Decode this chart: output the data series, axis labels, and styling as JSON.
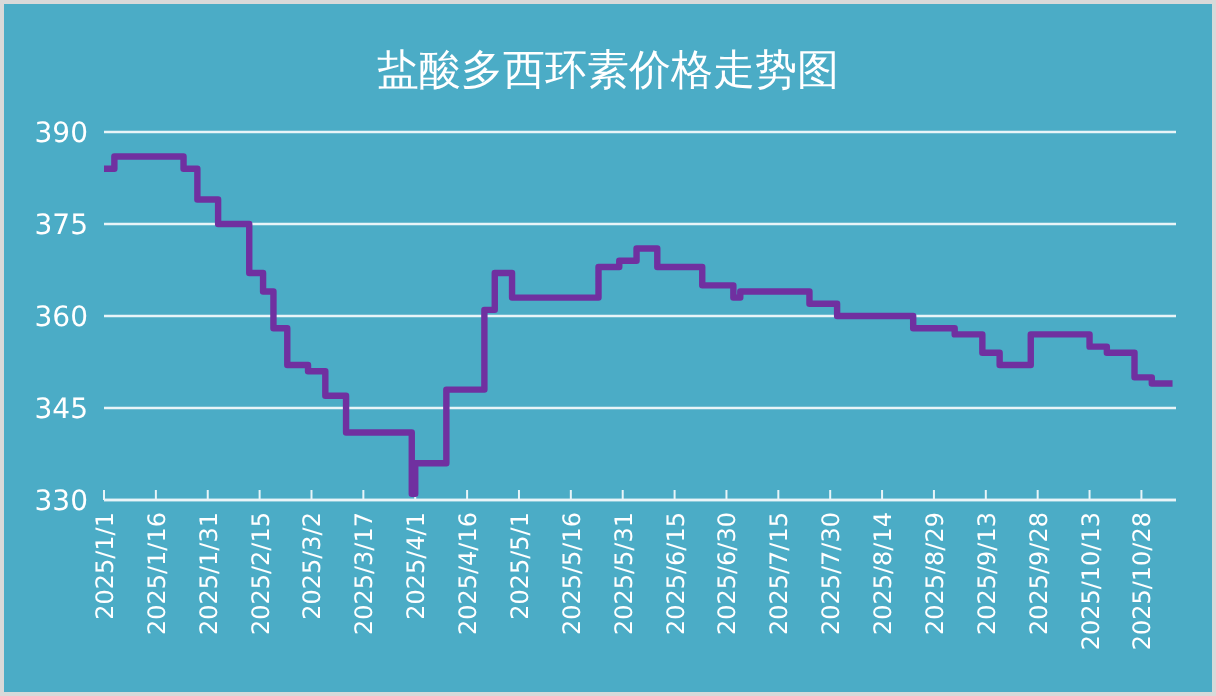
{
  "chart_data": {
    "type": "step",
    "title": "盐酸多西环素价格走势图",
    "color": "#7030a0",
    "grid": "y",
    "marker": "none",
    "line_style": "solid",
    "x": [
      "2025-01-01",
      "2025-01-04",
      "2025-01-24",
      "2025-01-28",
      "2025-02-03",
      "2025-02-12",
      "2025-02-16",
      "2025-02-19",
      "2025-02-23",
      "2025-03-01",
      "2025-03-06",
      "2025-03-12",
      "2025-03-31",
      "2025-04-01",
      "2025-04-10",
      "2025-04-21",
      "2025-04-24",
      "2025-04-29",
      "2025-05-24",
      "2025-05-30",
      "2025-06-04",
      "2025-06-10",
      "2025-06-23",
      "2025-07-02",
      "2025-07-04",
      "2025-07-24",
      "2025-08-01",
      "2025-08-23",
      "2025-09-04",
      "2025-09-12",
      "2025-09-17",
      "2025-09-26",
      "2025-10-13",
      "2025-10-18",
      "2025-10-26",
      "2025-10-31",
      "2025-11-06"
    ],
    "values": [
      384,
      386,
      384,
      379,
      375,
      367,
      364,
      358,
      352,
      351,
      347,
      341,
      331,
      336,
      348,
      361,
      367,
      363,
      368,
      369,
      371,
      368,
      365,
      363,
      364,
      362,
      360,
      358,
      357,
      354,
      352,
      357,
      355,
      354,
      350,
      349,
      349
    ],
    "xlim": [
      "2025-01-01",
      "2025-11-07"
    ],
    "xticks": [
      {
        "value": "2025-01-01",
        "label": "2025/1/1"
      },
      {
        "value": "2025-01-16",
        "label": "2025/1/16"
      },
      {
        "value": "2025-01-31",
        "label": "2025/1/31"
      },
      {
        "value": "2025-02-15",
        "label": "2025/2/15"
      },
      {
        "value": "2025-03-02",
        "label": "2025/3/2"
      },
      {
        "value": "2025-03-17",
        "label": "2025/3/17"
      },
      {
        "value": "2025-04-01",
        "label": "2025/4/1"
      },
      {
        "value": "2025-04-16",
        "label": "2025/4/16"
      },
      {
        "value": "2025-05-01",
        "label": "2025/5/1"
      },
      {
        "value": "2025-05-16",
        "label": "2025/5/16"
      },
      {
        "value": "2025-05-31",
        "label": "2025/5/31"
      },
      {
        "value": "2025-06-15",
        "label": "2025/6/15"
      },
      {
        "value": "2025-06-30",
        "label": "2025/6/30"
      },
      {
        "value": "2025-07-15",
        "label": "2025/7/15"
      },
      {
        "value": "2025-07-30",
        "label": "2025/7/30"
      },
      {
        "value": "2025-08-14",
        "label": "2025/8/14"
      },
      {
        "value": "2025-08-29",
        "label": "2025/8/29"
      },
      {
        "value": "2025-09-13",
        "label": "2025/9/13"
      },
      {
        "value": "2025-09-28",
        "label": "2025/9/28"
      },
      {
        "value": "2025-10-13",
        "label": "2025/10/13"
      },
      {
        "value": "2025-10-28",
        "label": "2025/10/28"
      }
    ],
    "ylim": [
      330,
      390
    ],
    "yticks": [
      330,
      345,
      360,
      375,
      390
    ]
  }
}
